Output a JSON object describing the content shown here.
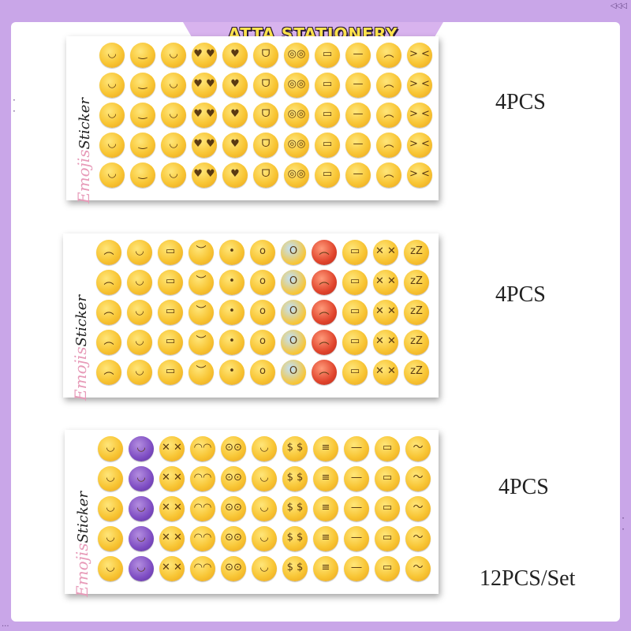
{
  "banner": {
    "title": "ATTA STATIONERY"
  },
  "sheets": [
    {
      "label_a": "Emojis",
      "label_b": "Sticker",
      "quantity": "4PCS",
      "row": [
        {
          "name": "grinning-face-icon",
          "glyph": "◡",
          "kind": ""
        },
        {
          "name": "smiling-blush-icon",
          "glyph": "‿",
          "kind": ""
        },
        {
          "name": "winking-face-icon",
          "glyph": "◡",
          "kind": ""
        },
        {
          "name": "heart-eyes-icon",
          "glyph": "♥ ♥",
          "kind": ""
        },
        {
          "name": "kissing-heart-icon",
          "glyph": "♥",
          "kind": ""
        },
        {
          "name": "tongue-wink-icon",
          "glyph": "ᗜ",
          "kind": ""
        },
        {
          "name": "flushed-face-icon",
          "glyph": "◎◎",
          "kind": ""
        },
        {
          "name": "grimacing-face-icon",
          "glyph": "▭",
          "kind": ""
        },
        {
          "name": "unamused-face-icon",
          "glyph": "—",
          "kind": ""
        },
        {
          "name": "disappointed-face-icon",
          "glyph": "︵",
          "kind": ""
        },
        {
          "name": "laughing-squint-icon",
          "glyph": "> <",
          "kind": ""
        }
      ]
    },
    {
      "label_a": "Emojis",
      "label_b": "Sticker",
      "quantity": "4PCS",
      "row": [
        {
          "name": "crying-face-icon",
          "glyph": "︵",
          "kind": ""
        },
        {
          "name": "tears-of-joy-icon",
          "glyph": "◡",
          "kind": ""
        },
        {
          "name": "loudly-crying-icon",
          "glyph": "▭",
          "kind": ""
        },
        {
          "name": "sleepy-face-icon",
          "glyph": "︶",
          "kind": ""
        },
        {
          "name": "hushed-face-icon",
          "glyph": "•",
          "kind": ""
        },
        {
          "name": "frowning-face-icon",
          "glyph": "o",
          "kind": ""
        },
        {
          "name": "screaming-face-icon",
          "glyph": "O",
          "kind": "scream"
        },
        {
          "name": "angry-face-icon",
          "glyph": "︵",
          "kind": "angry"
        },
        {
          "name": "tired-face-icon",
          "glyph": "▭",
          "kind": ""
        },
        {
          "name": "dizzy-face-icon",
          "glyph": "✕ ✕",
          "kind": ""
        },
        {
          "name": "sleeping-face-icon",
          "glyph": "zZ",
          "kind": ""
        }
      ]
    },
    {
      "label_a": "Emojis",
      "label_b": "Sticker",
      "quantity": "4PCS",
      "row": [
        {
          "name": "yum-face-icon",
          "glyph": "◡",
          "kind": ""
        },
        {
          "name": "smiling-devil-icon",
          "glyph": "◡",
          "kind": "devil"
        },
        {
          "name": "astonished-face-icon",
          "glyph": "✕ ✕",
          "kind": ""
        },
        {
          "name": "eye-roll-icon",
          "glyph": "◠◠",
          "kind": ""
        },
        {
          "name": "nerd-face-icon",
          "glyph": "⊙⊙",
          "kind": ""
        },
        {
          "name": "hugging-face-icon",
          "glyph": "◡",
          "kind": ""
        },
        {
          "name": "money-mouth-icon",
          "glyph": "$ $",
          "kind": ""
        },
        {
          "name": "zipper-mouth-icon",
          "glyph": "≡",
          "kind": ""
        },
        {
          "name": "thermometer-face-icon",
          "glyph": "―",
          "kind": ""
        },
        {
          "name": "bandage-face-icon",
          "glyph": "▭",
          "kind": ""
        },
        {
          "name": "thinking-face-icon",
          "glyph": "～",
          "kind": ""
        }
      ]
    }
  ],
  "set_label": "12PCS/Set"
}
